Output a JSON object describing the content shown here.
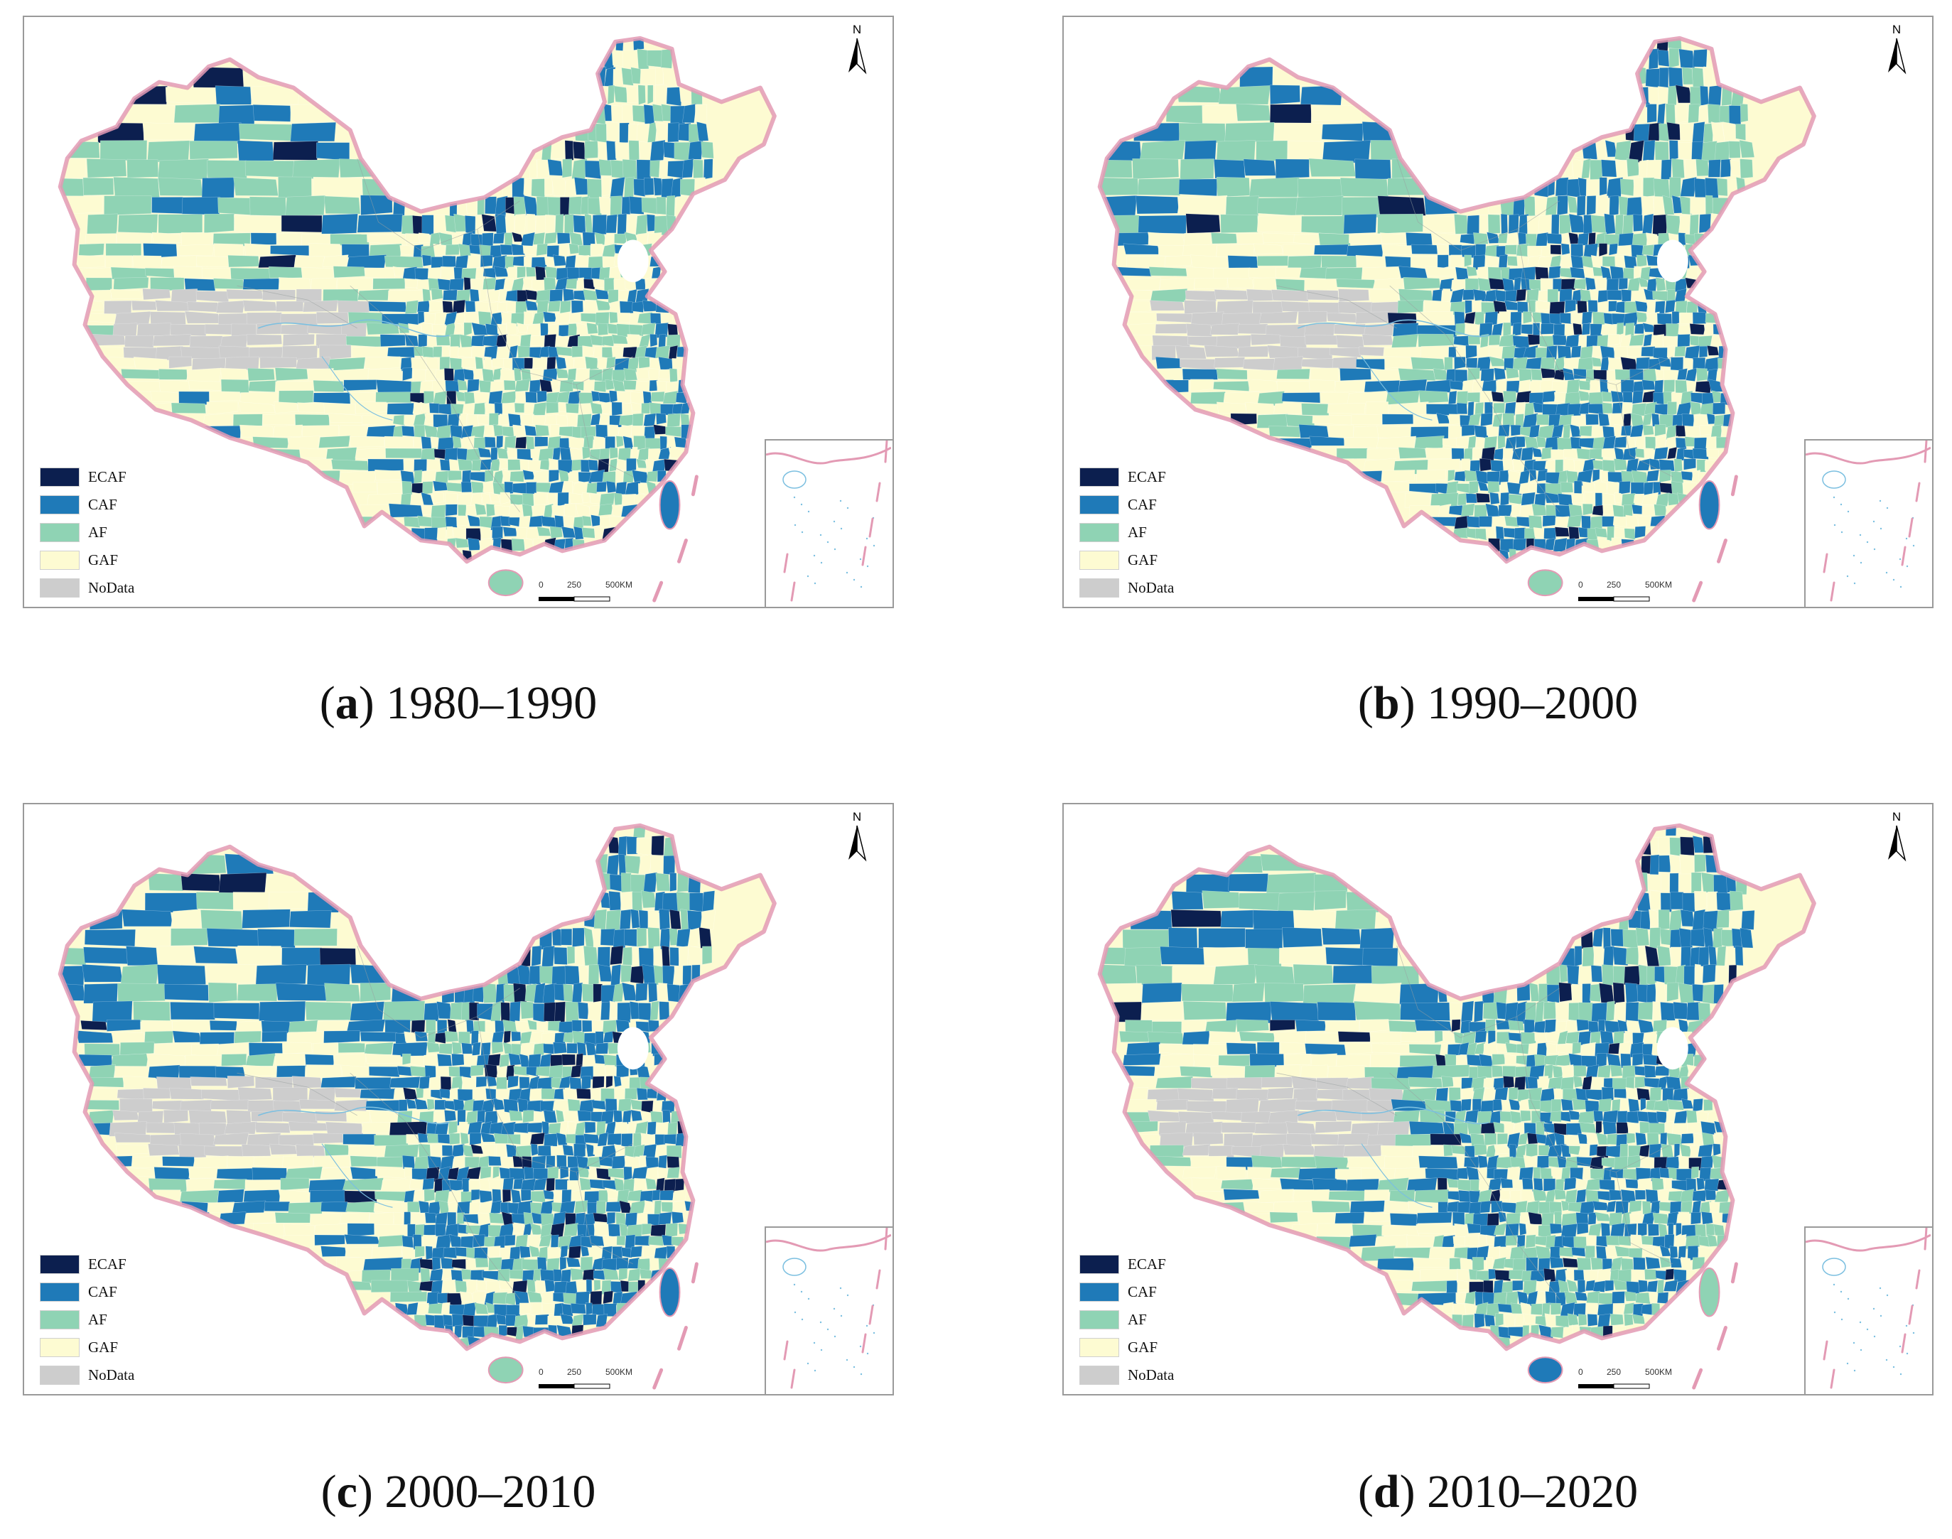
{
  "colors": {
    "ECAF": "#0c1f4f",
    "CAF": "#1f7ab8",
    "AF": "#8fd3b4",
    "GAF": "#fdfbd2",
    "NoData": "#cdcdcd",
    "border": "#e39ab4",
    "water": "#7bbfe0"
  },
  "legend": [
    {
      "key": "ECAF",
      "label": "ECAF"
    },
    {
      "key": "CAF",
      "label": "CAF"
    },
    {
      "key": "AF",
      "label": "AF"
    },
    {
      "key": "GAF",
      "label": "GAF"
    },
    {
      "key": "NoData",
      "label": "NoData"
    }
  ],
  "north_label": "N",
  "scale": {
    "ticks": [
      "0",
      "250",
      "500KM"
    ]
  },
  "panels": [
    {
      "letter": "a",
      "period": "1980–1990",
      "mix": {
        "ECAF": 0.04,
        "CAF": 0.3,
        "AF": 0.36,
        "GAF": 0.3
      }
    },
    {
      "letter": "b",
      "period": "1990–2000",
      "mix": {
        "ECAF": 0.06,
        "CAF": 0.4,
        "AF": 0.32,
        "GAF": 0.22
      }
    },
    {
      "letter": "c",
      "period": "2000–2010",
      "mix": {
        "ECAF": 0.08,
        "CAF": 0.5,
        "AF": 0.26,
        "GAF": 0.16
      }
    },
    {
      "letter": "d",
      "period": "2010–2020",
      "mix": {
        "ECAF": 0.05,
        "CAF": 0.42,
        "AF": 0.34,
        "GAF": 0.19
      }
    }
  ]
}
